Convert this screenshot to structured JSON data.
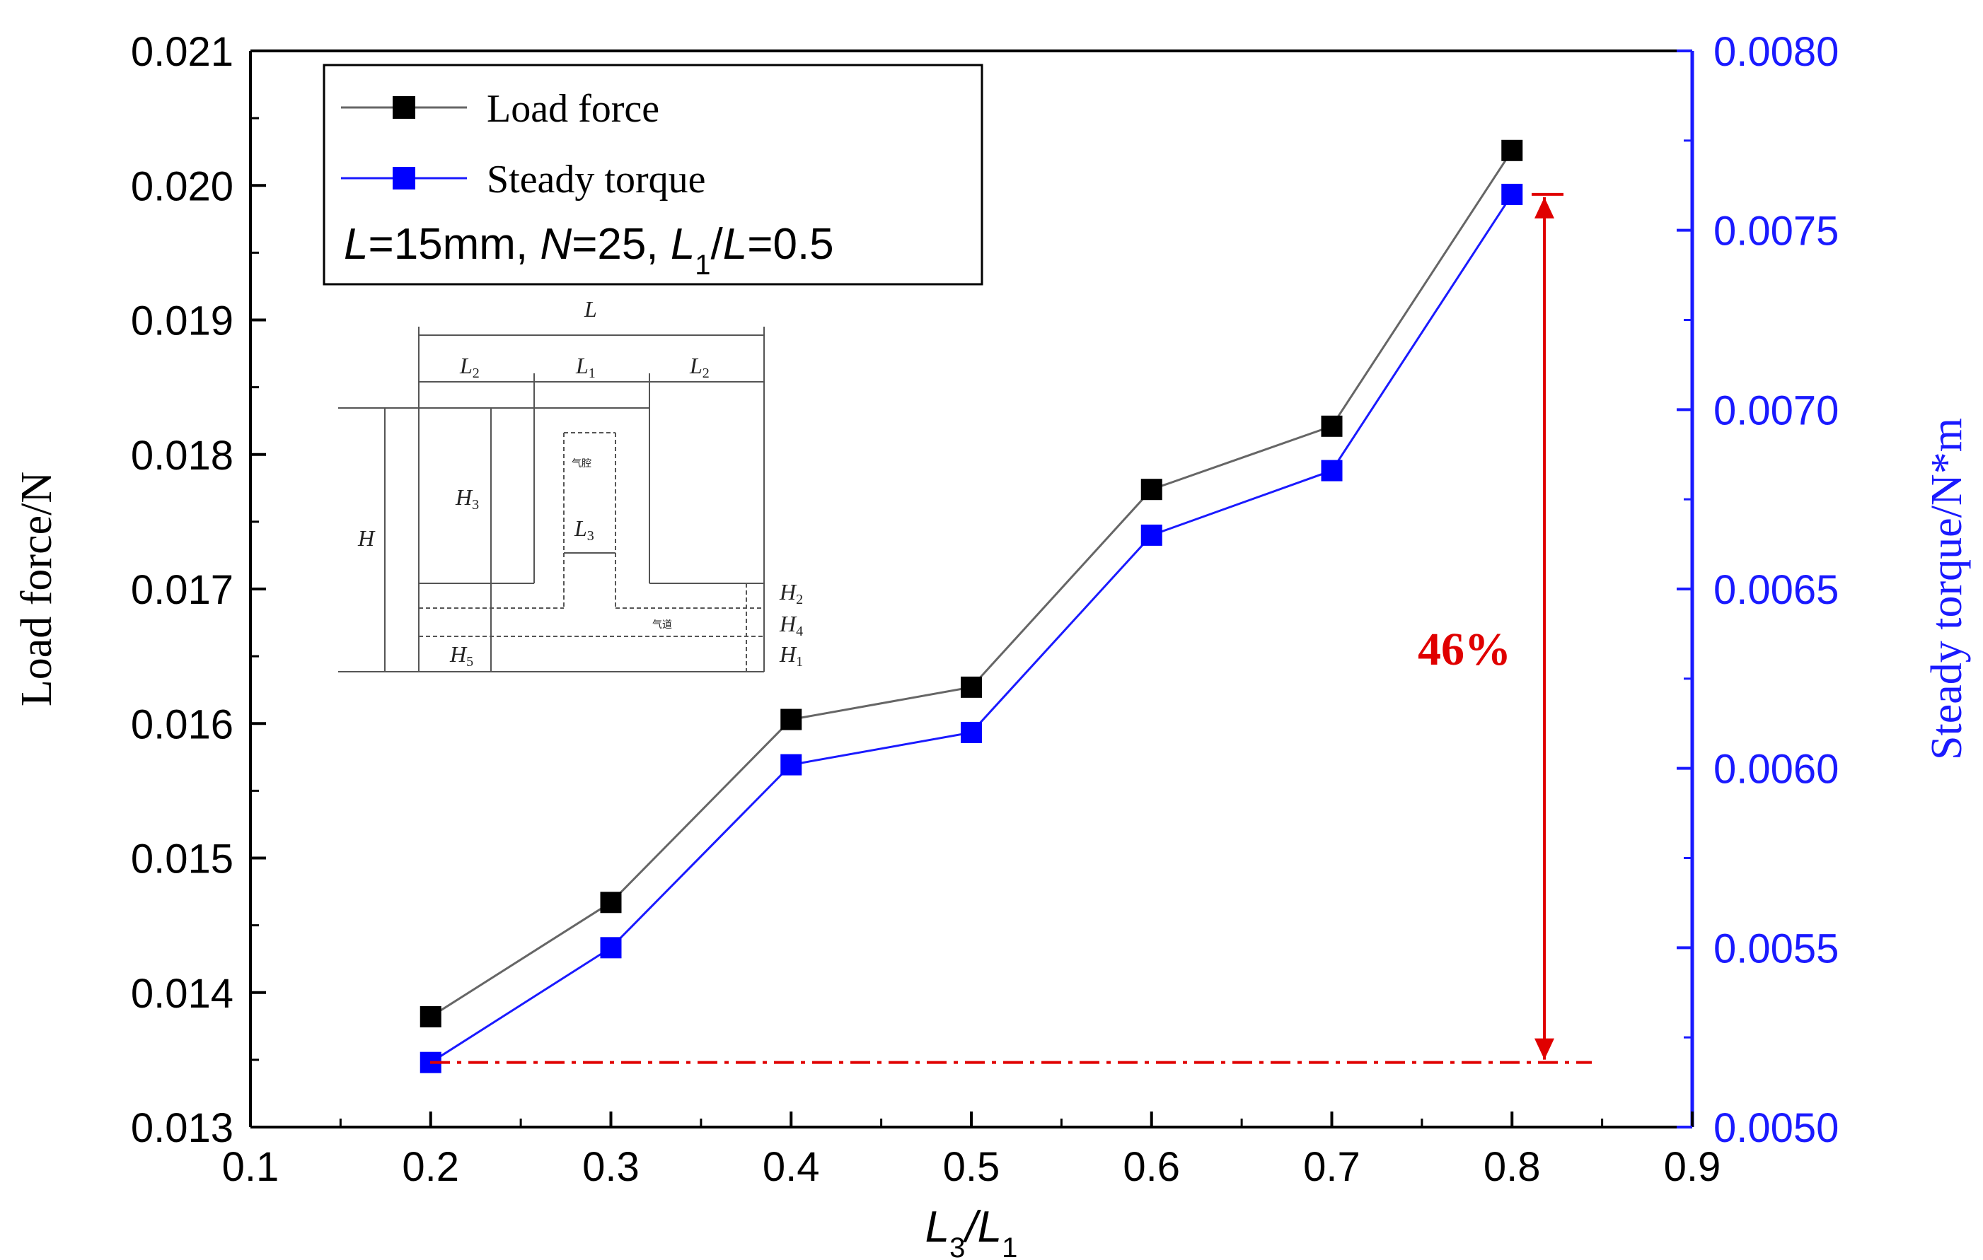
{
  "chart_data": {
    "type": "line",
    "x": [
      0.2,
      0.3,
      0.4,
      0.5,
      0.6,
      0.7,
      0.8
    ],
    "xlim": [
      0.1,
      0.9
    ],
    "xticks": [
      "0.1",
      "0.2",
      "0.3",
      "0.4",
      "0.5",
      "0.6",
      "0.7",
      "0.8",
      "0.9"
    ],
    "xlabel": {
      "main": "L",
      "sub1": "3",
      "sep": "/L",
      "sub2": "1"
    },
    "ylabel": "Load force/N",
    "ylim": [
      0.013,
      0.021
    ],
    "yticks": [
      "0.013",
      "0.014",
      "0.015",
      "0.016",
      "0.017",
      "0.018",
      "0.019",
      "0.020",
      "0.021"
    ],
    "y2label": "Steady torque/N*m",
    "y2lim": [
      0.005,
      0.008
    ],
    "y2ticks": [
      "0.0050",
      "0.0055",
      "0.0060",
      "0.0065",
      "0.0070",
      "0.0075",
      "0.0080"
    ],
    "series": [
      {
        "name": "Load force",
        "axis": "left",
        "color": "#000000",
        "line_color": "#666666",
        "values": [
          0.01382,
          0.01467,
          0.01603,
          0.01627,
          0.01774,
          0.01821,
          0.02026
        ]
      },
      {
        "name": "Steady torque",
        "axis": "right",
        "color": "#0000ff",
        "line_color": "#1a1aff",
        "values": [
          0.00518,
          0.0055,
          0.00601,
          0.0061,
          0.00665,
          0.00683,
          0.0076
        ]
      }
    ],
    "grid": false,
    "legend_position": "top-left",
    "conditions": {
      "L": "L",
      "L_val": "=15mm, ",
      "N": "N",
      "N_val": "=25, ",
      "L1": "L",
      "L1_sub": "1",
      "slash": "/",
      "L2": "L",
      "L2_val": "=0.5"
    },
    "annotation": {
      "text": "46%",
      "color": "#e00000",
      "from_value": 0.00518,
      "to_value": 0.0076,
      "axis": "right"
    },
    "inset_labels": {
      "L": "L",
      "L2a": "L",
      "L2a_sub": "2",
      "L1": "L",
      "L1_sub": "1",
      "L2b": "L",
      "L2b_sub": "2",
      "H": "H",
      "H3": "H",
      "H3_sub": "3",
      "L3": "L",
      "L3_sub": "3",
      "H2": "H",
      "H2_sub": "2",
      "H4": "H",
      "H4_sub": "4",
      "H1": "H",
      "H1_sub": "1",
      "H5": "H",
      "H5_sub": "5",
      "chamber": "气腔",
      "channel": "气道"
    }
  },
  "colors": {
    "left_axis": "#000000",
    "right_axis": "#1a1aff",
    "annotation": "#e00000"
  }
}
